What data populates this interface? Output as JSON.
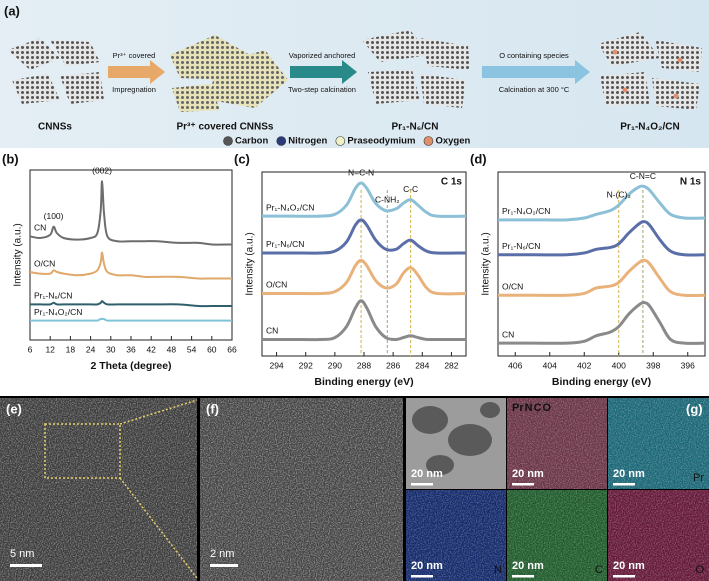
{
  "panels": {
    "a": {
      "label": "(a)",
      "stages": [
        "CNNSs",
        "Pr³⁺ covered CNNSs",
        "Pr₁-N₆/CN",
        "Pr₁-N₄O₂/CN"
      ],
      "stage_colors": [
        "#222222",
        "#8a7a2a",
        "#2f6f94",
        "#2f6f94"
      ],
      "steps": [
        [
          "Pr³⁺ covered",
          "Impregnation"
        ],
        [
          "Vaporized anchored",
          "Two-step calcination"
        ],
        [
          "O containing species",
          "Calcination at 300 °C"
        ]
      ],
      "legend": [
        "Carbon",
        "Nitrogen",
        "Praseodymium",
        "Oxygen"
      ],
      "legend_colors": [
        "#555555",
        "#2a3a7a",
        "#eef0c8",
        "#e0906a"
      ]
    },
    "e": {
      "label": "(e)",
      "scale": "5 nm"
    },
    "f": {
      "label": "(f)",
      "scale": "2 nm"
    },
    "g": {
      "label": "(g)",
      "scales": [
        "20 nm",
        "20 nm",
        "20 nm",
        "20 nm",
        "20 nm",
        "20 nm"
      ],
      "elements": [
        "Pr",
        "N",
        "C",
        "O"
      ],
      "merge": [
        "Pr",
        "N",
        "C",
        "O"
      ],
      "merge_colors": [
        "#ffffff",
        "#7a9cff",
        "#7be07b",
        "#ff8aa8"
      ]
    }
  },
  "chart_data": [
    {
      "type": "line",
      "label": "(b)",
      "xlabel": "2 Theta (degree)",
      "ylabel": "Intensity (a.u.)",
      "x": [
        6,
        9,
        12,
        13,
        14,
        16,
        20,
        24,
        26,
        27,
        27.4,
        28,
        29,
        32,
        36,
        40,
        44,
        50,
        56,
        60,
        66
      ],
      "xlim": [
        6,
        66
      ],
      "xticks": [
        6,
        12,
        18,
        24,
        30,
        36,
        42,
        48,
        54,
        60,
        66
      ],
      "ylim": [
        0,
        105
      ],
      "series": [
        {
          "name": "CN",
          "color": "#6d6d6d",
          "values": [
            64,
            63,
            65,
            70,
            66,
            63,
            62,
            63,
            66,
            80,
            98,
            78,
            64,
            61,
            61,
            61,
            61,
            60,
            60,
            59,
            59
          ]
        },
        {
          "name": "O/CN",
          "color": "#e0a86a",
          "values": [
            42,
            41,
            41,
            43,
            42,
            41,
            40,
            41,
            43,
            48,
            54,
            47,
            42,
            40,
            40,
            39,
            39,
            39,
            38,
            38,
            38
          ]
        },
        {
          "name": "Pr₁-N₆/CN",
          "color": "#2f5f6b",
          "values": [
            22,
            22,
            22,
            23,
            22,
            22,
            22,
            22,
            22,
            23,
            24,
            23,
            22,
            22,
            22,
            22,
            22,
            22,
            21,
            21,
            21
          ]
        },
        {
          "name": "Pr₁-N₄O₂/CN",
          "color": "#7fc3d6",
          "values": [
            12,
            12,
            12,
            12,
            12,
            12,
            12,
            12,
            12,
            13,
            13,
            13,
            12,
            12,
            12,
            12,
            12,
            12,
            12,
            12,
            12
          ]
        }
      ],
      "annotations": [
        "(100)",
        "(002)"
      ],
      "annotation_x": [
        13,
        27.4
      ]
    },
    {
      "type": "line",
      "label": "(c)",
      "corner_label": "C 1s",
      "xlabel": "Binding energy (eV)",
      "ylabel": "Intensity (a.u.)",
      "x": [
        295,
        293,
        291,
        290,
        289.2,
        288.6,
        288.2,
        287.8,
        287.2,
        286.5,
        285.8,
        285.3,
        284.8,
        284.3,
        283.7,
        283,
        281
      ],
      "xlim": [
        295,
        281
      ],
      "xticks": [
        294,
        292,
        290,
        288,
        286,
        284,
        282
      ],
      "ylim": [
        0,
        100
      ],
      "series": [
        {
          "name": "Pr₁-N₄O₂/CN",
          "color": "#8cc0d6",
          "values": [
            76,
            76,
            76,
            77,
            82,
            91,
            94,
            91,
            83,
            79,
            80,
            83,
            85,
            82,
            78,
            76,
            76
          ]
        },
        {
          "name": "Pr₁-N₆/CN",
          "color": "#5a6fa8",
          "values": [
            56,
            56,
            56,
            57,
            62,
            71,
            74,
            71,
            63,
            58,
            58,
            61,
            63,
            60,
            57,
            56,
            56
          ]
        },
        {
          "name": "O/CN",
          "color": "#e8b27a",
          "values": [
            34,
            34,
            34,
            35,
            40,
            49,
            52,
            49,
            41,
            37,
            39,
            45,
            48,
            44,
            37,
            34,
            34
          ]
        },
        {
          "name": "CN",
          "color": "#8a8a8a",
          "values": [
            9,
            9,
            9,
            10,
            16,
            26,
            30,
            26,
            16,
            10,
            9,
            10,
            11,
            10,
            9,
            9,
            9
          ]
        }
      ],
      "reference_lines": [
        288.2,
        286.4,
        284.8
      ],
      "annotations": [
        "N=C-N",
        "C-NH₂",
        "C-C"
      ]
    },
    {
      "type": "line",
      "label": "(d)",
      "corner_label": "N 1s",
      "xlabel": "Binding energy (eV)",
      "ylabel": "Intensity (a.u.)",
      "x": [
        407,
        405,
        403,
        402,
        401.3,
        400.5,
        400,
        399.4,
        398.8,
        398.5,
        398.2,
        397.6,
        397,
        396.2,
        395
      ],
      "xlim": [
        407,
        395
      ],
      "xticks": [
        406,
        404,
        402,
        400,
        398,
        396
      ],
      "ylim": [
        0,
        100
      ],
      "series": [
        {
          "name": "Pr₁-N₄O₂/CN",
          "color": "#8cc0d6",
          "values": [
            74,
            74,
            74,
            75,
            77,
            79,
            82,
            88,
            92,
            92,
            90,
            83,
            77,
            75,
            75
          ]
        },
        {
          "name": "Pr₁-N₆/CN",
          "color": "#5a6fa8",
          "values": [
            55,
            55,
            55,
            56,
            58,
            59,
            61,
            67,
            72,
            73,
            71,
            63,
            57,
            55,
            55
          ]
        },
        {
          "name": "O/CN",
          "color": "#e8b27a",
          "values": [
            33,
            33,
            33,
            34,
            37,
            38,
            40,
            46,
            51,
            52,
            50,
            42,
            35,
            33,
            33
          ]
        },
        {
          "name": "CN",
          "color": "#8a8a8a",
          "values": [
            7,
            7,
            7,
            8,
            11,
            13,
            16,
            23,
            28,
            29,
            27,
            18,
            9,
            7,
            7
          ]
        }
      ],
      "reference_lines": [
        400,
        398.6
      ],
      "annotations": [
        "N-(C)₃",
        "C-N=C"
      ]
    }
  ]
}
